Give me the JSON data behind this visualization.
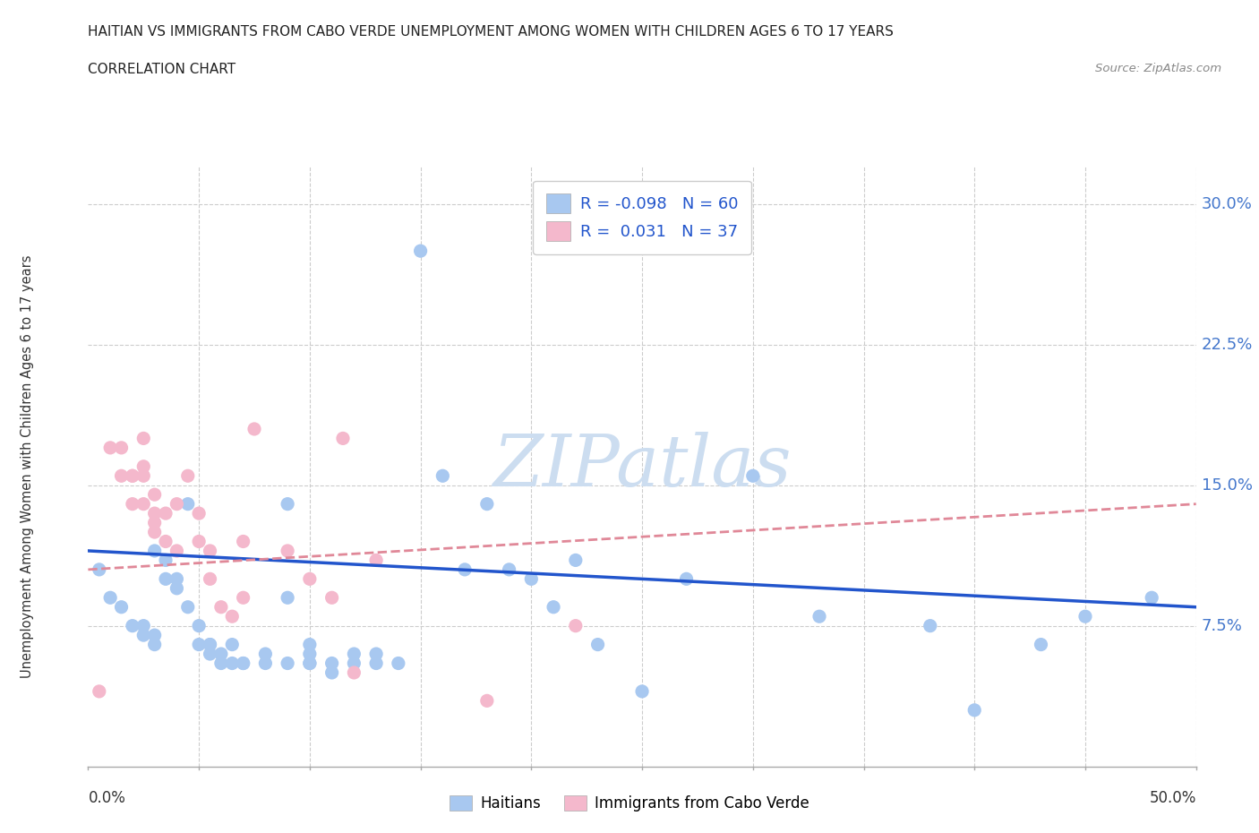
{
  "title_line1": "HAITIAN VS IMMIGRANTS FROM CABO VERDE UNEMPLOYMENT AMONG WOMEN WITH CHILDREN AGES 6 TO 17 YEARS",
  "title_line2": "CORRELATION CHART",
  "source": "Source: ZipAtlas.com",
  "ylabel": "Unemployment Among Women with Children Ages 6 to 17 years",
  "xlim": [
    0.0,
    0.5
  ],
  "ylim": [
    0.0,
    0.32
  ],
  "ytick_vals": [
    0.075,
    0.15,
    0.225,
    0.3
  ],
  "ytick_labels": [
    "7.5%",
    "15.0%",
    "22.5%",
    "30.0%"
  ],
  "grid_color": "#cccccc",
  "haitians_color": "#a8c8f0",
  "cabo_verde_color": "#f4b8cc",
  "haitians_line_color": "#2255cc",
  "cabo_verde_line_color": "#e08898",
  "watermark_color": "#d8e8f8",
  "haitians_x": [
    0.005,
    0.01,
    0.015,
    0.02,
    0.025,
    0.025,
    0.03,
    0.03,
    0.03,
    0.035,
    0.035,
    0.04,
    0.04,
    0.045,
    0.045,
    0.05,
    0.05,
    0.055,
    0.055,
    0.055,
    0.06,
    0.06,
    0.065,
    0.065,
    0.07,
    0.07,
    0.08,
    0.08,
    0.09,
    0.09,
    0.09,
    0.1,
    0.1,
    0.1,
    0.1,
    0.11,
    0.11,
    0.12,
    0.12,
    0.13,
    0.13,
    0.14,
    0.15,
    0.16,
    0.17,
    0.18,
    0.19,
    0.2,
    0.21,
    0.22,
    0.23,
    0.25,
    0.27,
    0.3,
    0.33,
    0.38,
    0.4,
    0.43,
    0.45,
    0.48
  ],
  "haitians_y": [
    0.105,
    0.09,
    0.085,
    0.075,
    0.075,
    0.07,
    0.07,
    0.065,
    0.115,
    0.11,
    0.1,
    0.1,
    0.095,
    0.14,
    0.085,
    0.075,
    0.065,
    0.065,
    0.065,
    0.06,
    0.06,
    0.055,
    0.065,
    0.055,
    0.055,
    0.055,
    0.06,
    0.055,
    0.14,
    0.09,
    0.055,
    0.065,
    0.06,
    0.055,
    0.055,
    0.055,
    0.05,
    0.06,
    0.055,
    0.06,
    0.055,
    0.055,
    0.275,
    0.155,
    0.105,
    0.14,
    0.105,
    0.1,
    0.085,
    0.11,
    0.065,
    0.04,
    0.1,
    0.155,
    0.08,
    0.075,
    0.03,
    0.065,
    0.08,
    0.09
  ],
  "cabo_verde_x": [
    0.005,
    0.01,
    0.015,
    0.015,
    0.02,
    0.02,
    0.02,
    0.025,
    0.025,
    0.025,
    0.025,
    0.03,
    0.03,
    0.03,
    0.03,
    0.035,
    0.035,
    0.04,
    0.04,
    0.045,
    0.05,
    0.05,
    0.055,
    0.055,
    0.06,
    0.065,
    0.07,
    0.07,
    0.075,
    0.09,
    0.1,
    0.11,
    0.115,
    0.12,
    0.13,
    0.18,
    0.22
  ],
  "cabo_verde_y": [
    0.04,
    0.17,
    0.17,
    0.155,
    0.155,
    0.155,
    0.14,
    0.175,
    0.16,
    0.155,
    0.14,
    0.145,
    0.135,
    0.13,
    0.125,
    0.135,
    0.12,
    0.14,
    0.115,
    0.155,
    0.135,
    0.12,
    0.115,
    0.1,
    0.085,
    0.08,
    0.12,
    0.09,
    0.18,
    0.115,
    0.1,
    0.09,
    0.175,
    0.05,
    0.11,
    0.035,
    0.075
  ],
  "haitians_trend_x": [
    0.0,
    0.5
  ],
  "haitians_trend_y": [
    0.115,
    0.085
  ],
  "cabo_trend_x": [
    0.0,
    0.5
  ],
  "cabo_trend_y": [
    0.105,
    0.14
  ]
}
